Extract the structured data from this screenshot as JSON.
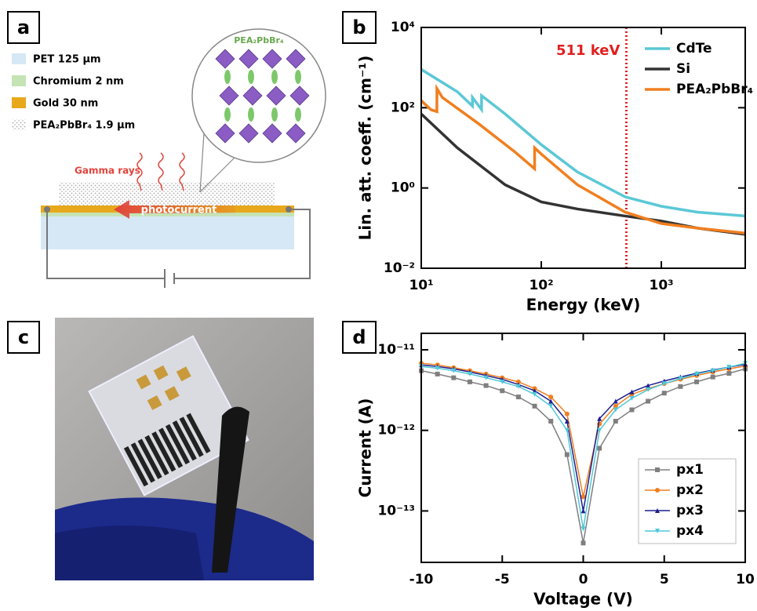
{
  "panel_labels": [
    "a",
    "b",
    "c",
    "d"
  ],
  "diagram": {
    "legend": [
      "PET 125 µm",
      "Chromium 2 nm",
      "Gold 30 nm",
      "PEA₂PbBr₄ 1.9 µm"
    ],
    "crystal_label": "PEA₂PbBr₄",
    "gamma_label": "Gamma rays",
    "current_label": "photocurrent"
  },
  "chart_data": [
    {
      "type": "line",
      "xscale": "log",
      "yscale": "log",
      "xlabel": "Energy (keV)",
      "ylabel": "Lin. att. coeff. (cm⁻¹)",
      "xlim": [
        10,
        5000
      ],
      "ylim": [
        0.01,
        10000
      ],
      "xticks": [
        {
          "value": 10,
          "label": "10¹"
        },
        {
          "value": 100,
          "label": "10²"
        },
        {
          "value": 1000,
          "label": "10³"
        }
      ],
      "yticks": [
        {
          "value": 0.01,
          "label": "10⁻²"
        },
        {
          "value": 1,
          "label": "10⁰"
        },
        {
          "value": 100,
          "label": "10²"
        },
        {
          "value": 10000,
          "label": "10⁴"
        }
      ],
      "legend": "upper right",
      "annotations": [
        {
          "text": "511 keV",
          "x": 511,
          "color": "#e02020"
        }
      ],
      "series": [
        {
          "name": "CdTe",
          "color": "#5bc8d6",
          "x": [
            10,
            20,
            26.7,
            26.7,
            31.8,
            31.8,
            50,
            100,
            200,
            500,
            1000,
            2000,
            5000
          ],
          "values": [
            900,
            250,
            110,
            180,
            90,
            200,
            70,
            12,
            2.5,
            0.6,
            0.35,
            0.25,
            0.2
          ]
        },
        {
          "name": "Si",
          "color": "#333333",
          "x": [
            10,
            20,
            50,
            100,
            200,
            500,
            1000,
            2000,
            5000
          ],
          "values": [
            70,
            10,
            1.2,
            0.45,
            0.3,
            0.2,
            0.15,
            0.1,
            0.07
          ]
        },
        {
          "name": "PEA₂PbBr₄",
          "color": "#f07f1f",
          "x": [
            10,
            12,
            13.5,
            13.5,
            15,
            30,
            60,
            88,
            88,
            100,
            200,
            500,
            1000,
            2000,
            5000
          ],
          "values": [
            150,
            90,
            80,
            300,
            180,
            40,
            8,
            3,
            10,
            7,
            1.2,
            0.25,
            0.13,
            0.1,
            0.075
          ]
        }
      ]
    },
    {
      "type": "line",
      "xscale": "linear",
      "yscale": "log",
      "xlabel": "Voltage (V)",
      "ylabel": "Current (A)",
      "xlim": [
        -10,
        10
      ],
      "ylim": [
        2.3e-14,
        1.6e-11
      ],
      "xticks": [
        -10,
        -5,
        0,
        5,
        10
      ],
      "yticks": [
        {
          "value": 1e-11,
          "label": "10⁻¹¹"
        },
        {
          "value": 1e-12,
          "label": "10⁻¹²"
        },
        {
          "value": 1e-13,
          "label": "10⁻¹³"
        }
      ],
      "legend": "lower right",
      "x": [
        -10,
        -9,
        -8,
        -7,
        -6,
        -5,
        -4,
        -3,
        -2,
        -1,
        0,
        1,
        2,
        3,
        4,
        5,
        6,
        7,
        8,
        9,
        10
      ],
      "series": [
        {
          "name": "px1",
          "color": "#7f7f7f",
          "marker": "square",
          "values": [
            5.5e-12,
            5e-12,
            4.5e-12,
            4e-12,
            3.6e-12,
            3.1e-12,
            2.6e-12,
            2e-12,
            1.3e-12,
            5e-13,
            4e-14,
            6e-13,
            1.3e-12,
            1.8e-12,
            2.3e-12,
            2.9e-12,
            3.5e-12,
            4e-12,
            4.6e-12,
            5.1e-12,
            5.8e-12
          ]
        },
        {
          "name": "px2",
          "color": "#f07f1f",
          "marker": "circle",
          "values": [
            6.8e-12,
            6.5e-12,
            6e-12,
            5.5e-12,
            5e-12,
            4.5e-12,
            4e-12,
            3.3e-12,
            2.6e-12,
            1.6e-12,
            1.5e-13,
            1.2e-12,
            2e-12,
            2.8e-12,
            3.3e-12,
            3.8e-12,
            4.3e-12,
            4.8e-12,
            5.3e-12,
            5.8e-12,
            6.3e-12
          ]
        },
        {
          "name": "px3",
          "color": "#1f1f8f",
          "marker": "triangle-up",
          "values": [
            6.5e-12,
            6.2e-12,
            5.8e-12,
            5.3e-12,
            4.8e-12,
            4.3e-12,
            3.7e-12,
            3.1e-12,
            2.3e-12,
            1.3e-12,
            1e-13,
            1.4e-12,
            2.3e-12,
            3e-12,
            3.6e-12,
            4.1e-12,
            4.6e-12,
            5.1e-12,
            5.6e-12,
            6.1e-12,
            6.6e-12
          ]
        },
        {
          "name": "px4",
          "color": "#4fc8d8",
          "marker": "triangle-down",
          "values": [
            6.2e-12,
            5.9e-12,
            5.5e-12,
            5e-12,
            4.5e-12,
            4e-12,
            3.5e-12,
            2.8e-12,
            2e-12,
            1e-12,
            6e-14,
            1e-12,
            1.8e-12,
            2.5e-12,
            3.2e-12,
            3.8e-12,
            4.4e-12,
            5e-12,
            5.5e-12,
            6.1e-12,
            6.8e-12
          ]
        }
      ]
    }
  ]
}
